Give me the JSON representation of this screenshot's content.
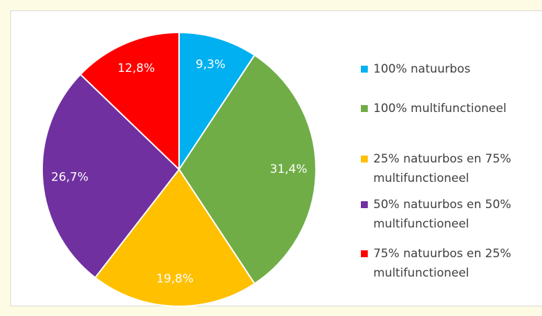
{
  "chart_data": {
    "type": "pie",
    "categories": [
      "100% natuurbos",
      "100% multifunctioneel",
      "25% natuurbos en 75% multifunctioneel",
      "50% natuurbos en 50% multifunctioneel",
      "75% natuurbos en 25% multifunctioneel"
    ],
    "values": [
      9.3,
      31.4,
      19.8,
      26.7,
      12.8
    ],
    "value_labels": [
      "9,3%",
      "31,4%",
      "19,8%",
      "26,7%",
      "12,8%"
    ],
    "colors": [
      "#00b0f0",
      "#70ad47",
      "#ffc000",
      "#7030a0",
      "#ff0000"
    ],
    "legend": "right"
  }
}
